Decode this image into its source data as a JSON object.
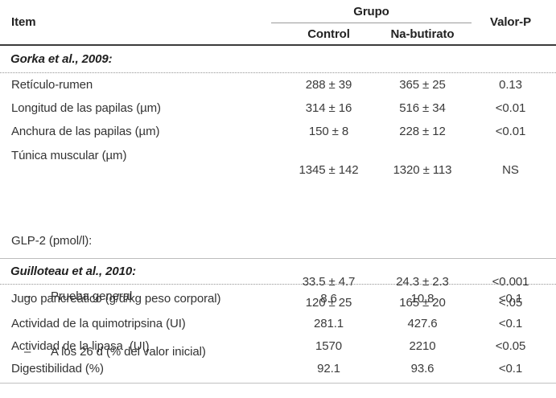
{
  "header": {
    "item": "Item",
    "group": "Grupo",
    "control": "Control",
    "na_butirato": "Na-butirato",
    "valor_p": "Valor-P"
  },
  "sections": [
    {
      "title": "Gorka et al., 2009:",
      "rows": [
        {
          "item": "Retículo-rumen",
          "control": "288 ± 39",
          "na_butirato": "365 ± 25",
          "valor_p": "0.13"
        },
        {
          "item": "Longitud de las papilas (µm)",
          "control": "314 ± 16",
          "na_butirato": "516 ± 34",
          "valor_p": "<0.01"
        },
        {
          "item": "Anchura de las papilas (µm)",
          "control": "150 ± 8",
          "na_butirato": "228 ± 12",
          "valor_p": "<0.01"
        },
        {
          "item": "Túnica muscular (µm)",
          "control": "1345 ± 142",
          "na_butirato": "1320 ± 113",
          "valor_p": "NS"
        },
        {
          "item_title": "GLP-2 (pmol/l):",
          "sub_items": [
            {
              "dash": "–",
              "text": "Prueba general"
            },
            {
              "dash": "–",
              "text": "A los 26 d (% del valor inicial)"
            }
          ],
          "control": [
            "33.5 ± 4.7",
            "120 ± 25"
          ],
          "na_butirato": [
            "24.3 ± 2.3",
            "165 ± 20"
          ],
          "valor_p": [
            "<0.001",
            "<.05"
          ]
        }
      ]
    },
    {
      "title": "Guilloteau et al., 2010:",
      "rows": [
        {
          "item": "Jugo pancreático (g/d/kg peso corporal)",
          "control": "8.6",
          "na_butirato": "10.8",
          "valor_p": "<0.1"
        },
        {
          "item": "Actividad de la quimotripsina (UI)",
          "control": "281.1",
          "na_butirato": "427.6",
          "valor_p": "<0.1"
        },
        {
          "item": "Actividad de la lipasa  (UI)",
          "control": "1570",
          "na_butirato": "2210",
          "valor_p": "<0.05"
        },
        {
          "item": "Digestibilidad (%)",
          "control": "92.1",
          "na_butirato": "93.6",
          "valor_p": "<0.1"
        }
      ]
    }
  ]
}
